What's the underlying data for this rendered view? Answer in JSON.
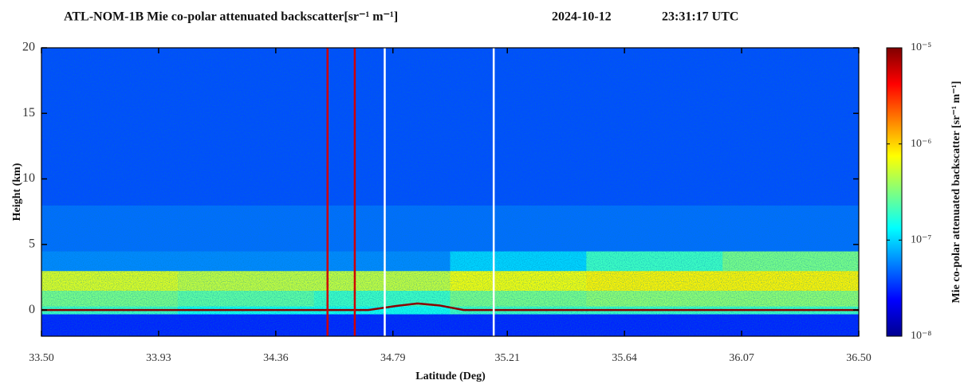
{
  "chart_data": {
    "type": "heatmap",
    "title": "ATL-NOM-1B Mie co-polar attenuated backscatter[sr⁻¹ m⁻¹]",
    "date": "2024-10-12",
    "time": "23:31:17 UTC",
    "xlabel": "Latitude (Deg)",
    "ylabel": "Height (km)",
    "colorbar_label": "Mie co-polar attenuated backscatter [sr⁻¹ m⁻¹]",
    "xlim": [
      33.5,
      36.5
    ],
    "xticks": [
      {
        "value": 33.5,
        "label": "33.50"
      },
      33.93,
      34.36,
      34.79,
      35.21,
      35.64,
      36.07,
      {
        "value": 36.5,
        "label": "36.50"
      }
    ],
    "ylim": [
      -2,
      20
    ],
    "yticks": [
      0,
      5,
      10,
      15,
      20
    ],
    "color_scale": "log",
    "clim": [
      1e-08,
      1e-05
    ],
    "cticks": [
      {
        "value": 1e-08,
        "label": "10⁻⁸"
      },
      {
        "value": 1e-07,
        "label": "10⁻⁷"
      },
      {
        "value": 1e-06,
        "label": "10⁻⁶"
      },
      {
        "value": 1e-05,
        "label": "10⁻⁵"
      }
    ],
    "x_edges": [
      33.5,
      34.0,
      34.5,
      35.0,
      35.5,
      36.0,
      36.5
    ],
    "y_edges": [
      -2,
      -0.3,
      0.3,
      1.5,
      3,
      4.5,
      8,
      20
    ],
    "values": [
      [
        3e-08,
        3e-08,
        3e-08,
        3e-08,
        3e-08,
        3e-08
      ],
      [
        2e-07,
        1.5e-07,
        1.5e-07,
        2e-07,
        2e-07,
        2e-07
      ],
      [
        3e-07,
        2.5e-07,
        2e-07,
        3e-07,
        3.5e-07,
        3.5e-07
      ],
      [
        6e-07,
        5e-07,
        5e-07,
        7e-07,
        8e-07,
        8e-07
      ],
      [
        6e-08,
        6e-08,
        6e-08,
        1e-07,
        2e-07,
        3e-07
      ],
      [
        5e-08,
        5e-08,
        5e-08,
        5e-08,
        5e-08,
        5e-08
      ],
      [
        4e-08,
        4e-08,
        4e-08,
        4e-08,
        4e-08,
        4e-08
      ]
    ],
    "vertical_lines": [
      {
        "x": 34.55,
        "color": "#d00000"
      },
      {
        "x": 34.65,
        "color": "#d00000"
      },
      {
        "x": 34.76,
        "color": "#ffffff"
      },
      {
        "x": 35.16,
        "color": "#ffffff"
      }
    ],
    "surface_color": "#8b0000",
    "surface_x": [
      33.5,
      34.7,
      34.8,
      34.88,
      34.96,
      35.05,
      36.5
    ],
    "surface_height": [
      0,
      0,
      0.3,
      0.5,
      0.35,
      0,
      0
    ]
  }
}
